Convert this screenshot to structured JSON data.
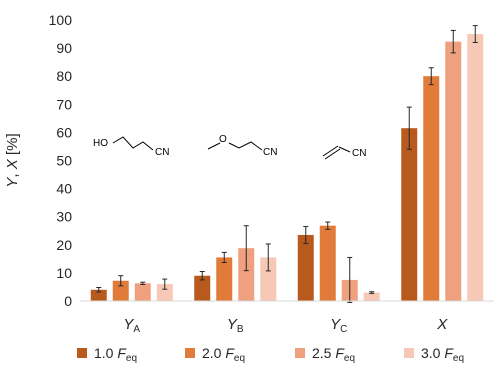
{
  "chart_data": {
    "type": "bar",
    "ylabel_parts": [
      "Y",
      ", ",
      "X",
      " [%]"
    ],
    "ylim": [
      0,
      100
    ],
    "yticks": [
      0,
      10,
      20,
      30,
      40,
      50,
      60,
      70,
      80,
      90,
      100
    ],
    "grid": false,
    "legend_position": "bottom",
    "categories": [
      {
        "main": "Y",
        "sub": "A"
      },
      {
        "main": "Y",
        "sub": "B"
      },
      {
        "main": "Y",
        "sub": "C"
      },
      {
        "main": "X",
        "sub": ""
      }
    ],
    "series": [
      {
        "name_prefix": "1.0 ",
        "name_var": "F",
        "name_sub": "eq",
        "color": "#B85A1E",
        "values": [
          4.0,
          9.0,
          23.5,
          61.5
        ],
        "errors": [
          0.8,
          1.5,
          3.0,
          7.5
        ]
      },
      {
        "name_prefix": "2.0 ",
        "name_var": "F",
        "name_sub": "eq",
        "color": "#E07B39",
        "values": [
          7.2,
          15.5,
          26.8,
          80.0
        ],
        "errors": [
          1.8,
          1.8,
          1.3,
          3.0
        ]
      },
      {
        "name_prefix": "2.5 ",
        "name_var": "F",
        "name_sub": "eq",
        "color": "#EFA07F",
        "values": [
          6.3,
          18.8,
          7.5,
          92.3
        ],
        "errors": [
          0.4,
          8.0,
          8.0,
          4.0
        ]
      },
      {
        "name_prefix": "3.0 ",
        "name_var": "F",
        "name_sub": "eq",
        "color": "#F6C8B5",
        "values": [
          6.0,
          15.5,
          3.0,
          95.0
        ],
        "errors": [
          1.8,
          4.8,
          0.3,
          3.0
        ]
      }
    ],
    "annotations": [
      "HO",
      "CN",
      "O",
      "CN",
      "CN"
    ]
  }
}
